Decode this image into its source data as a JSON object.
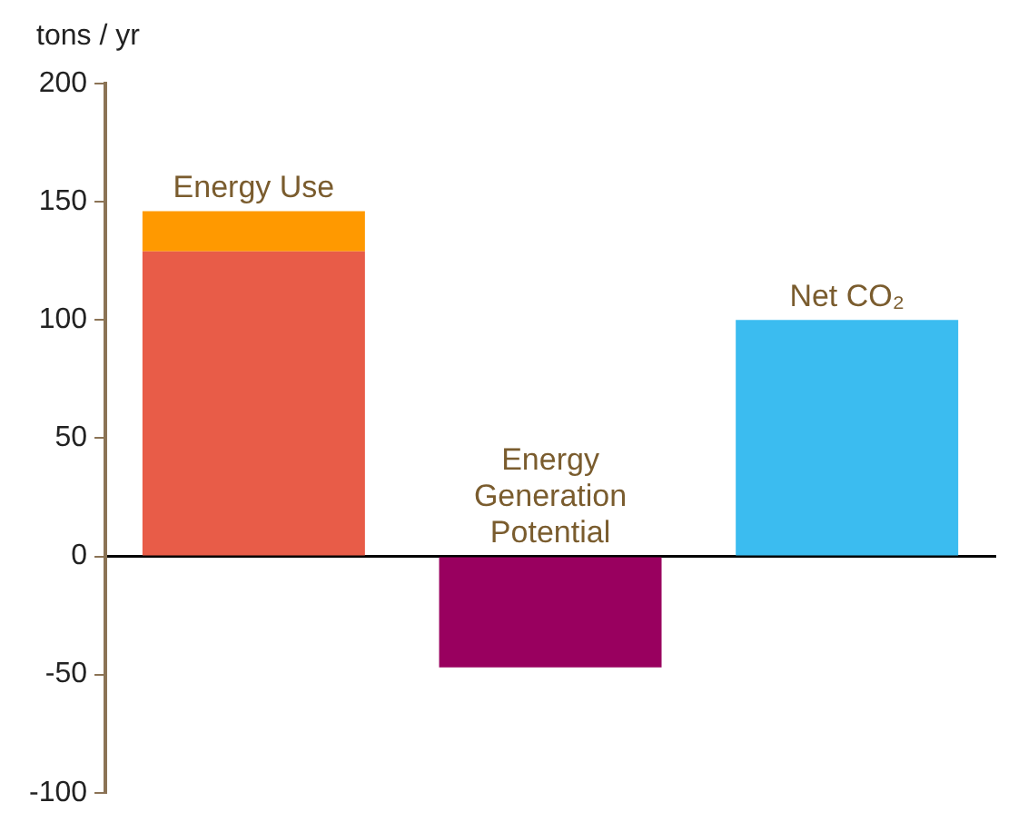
{
  "chart_data": {
    "type": "bar",
    "ylabel": "tons / yr",
    "categories": [
      "Energy Use",
      "Energy Generation Potential",
      "Net CO₂"
    ],
    "stacked": true,
    "series": [
      {
        "values": [
          129,
          -47,
          100
        ],
        "colors": [
          "#e85c48",
          "#99005f",
          "#3bbcf0"
        ]
      },
      {
        "values": [
          17,
          null,
          null
        ],
        "color": "#ff9900"
      }
    ],
    "ylim": [
      -100,
      200
    ],
    "yticks": [
      -100,
      -50,
      0,
      50,
      100,
      150,
      200
    ],
    "tick_labels": "y",
    "legend": false
  }
}
